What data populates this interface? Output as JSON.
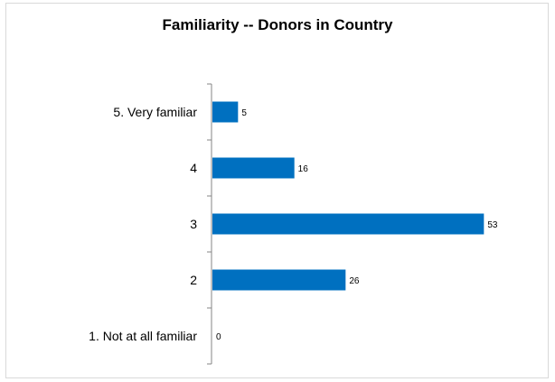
{
  "chart_data": {
    "type": "bar",
    "orientation": "horizontal",
    "title": "Familiarity -- Donors in Country",
    "categories": [
      "5. Very familiar",
      "4",
      "3",
      "2",
      "1. Not at all familiar"
    ],
    "values": [
      5,
      16,
      53,
      26,
      0
    ],
    "xlim": [
      0,
      60
    ],
    "bar_color": "#0070c0",
    "grid": false,
    "legend": "none"
  }
}
